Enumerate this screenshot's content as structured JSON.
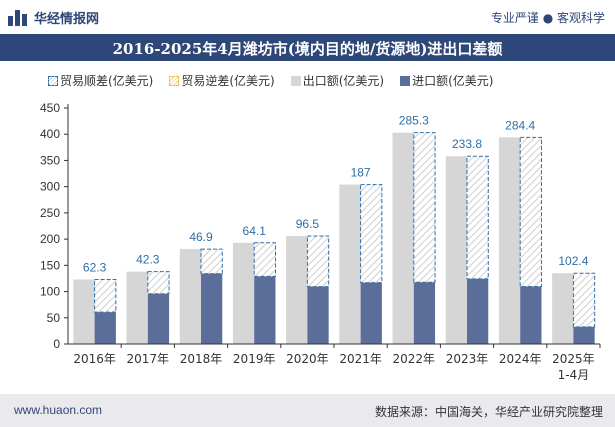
{
  "header": {
    "brand": "华经情报网",
    "tagline": "专业严谨 ● 客观科学"
  },
  "footer": {
    "site": "www.huaon.com",
    "source": "数据来源：中国海关，华经产业研究院整理"
  },
  "colors": {
    "export": "#d6d6d6",
    "import": "#5b6e9a",
    "surplus_border": "#2e6fa8",
    "deficit_border": "#e0c24c",
    "title_bg": "#2d4778"
  },
  "chart_data": {
    "type": "bar",
    "title": "2016-2025年4月潍坊市(境内目的地/货源地)进出口差额",
    "legend": [
      "贸易顺差(亿美元)",
      "贸易逆差(亿美元)",
      "出口额(亿美元)",
      "进口额(亿美元)"
    ],
    "legend_position": "top-left",
    "categories": [
      "2016年",
      "2017年",
      "2018年",
      "2019年",
      "2020年",
      "2021年",
      "2022年",
      "2023年",
      "2024年",
      "2025年\n1-4月"
    ],
    "series": [
      {
        "name": "出口额(亿美元)",
        "values": [
          123,
          138,
          181,
          193,
          206,
          304,
          403,
          358,
          394,
          135
        ]
      },
      {
        "name": "进口额(亿美元)",
        "values": [
          60.7,
          95.7,
          134.1,
          128.9,
          109.5,
          117,
          117.7,
          124.2,
          109.6,
          32.6
        ]
      },
      {
        "name": "贸易顺差(亿美元)",
        "values": [
          62.3,
          42.3,
          46.9,
          64.1,
          96.5,
          187,
          285.3,
          233.8,
          284.4,
          102.4
        ]
      }
    ],
    "data_labels": [
      "62.3",
      "42.3",
      "46.9",
      "64.1",
      "96.5",
      "187",
      "285.3",
      "233.8",
      "284.4",
      "102.4"
    ],
    "ylim": [
      0,
      450
    ],
    "yticks": [
      0,
      50,
      100,
      150,
      200,
      250,
      300,
      350,
      400,
      450
    ],
    "grid": false
  }
}
